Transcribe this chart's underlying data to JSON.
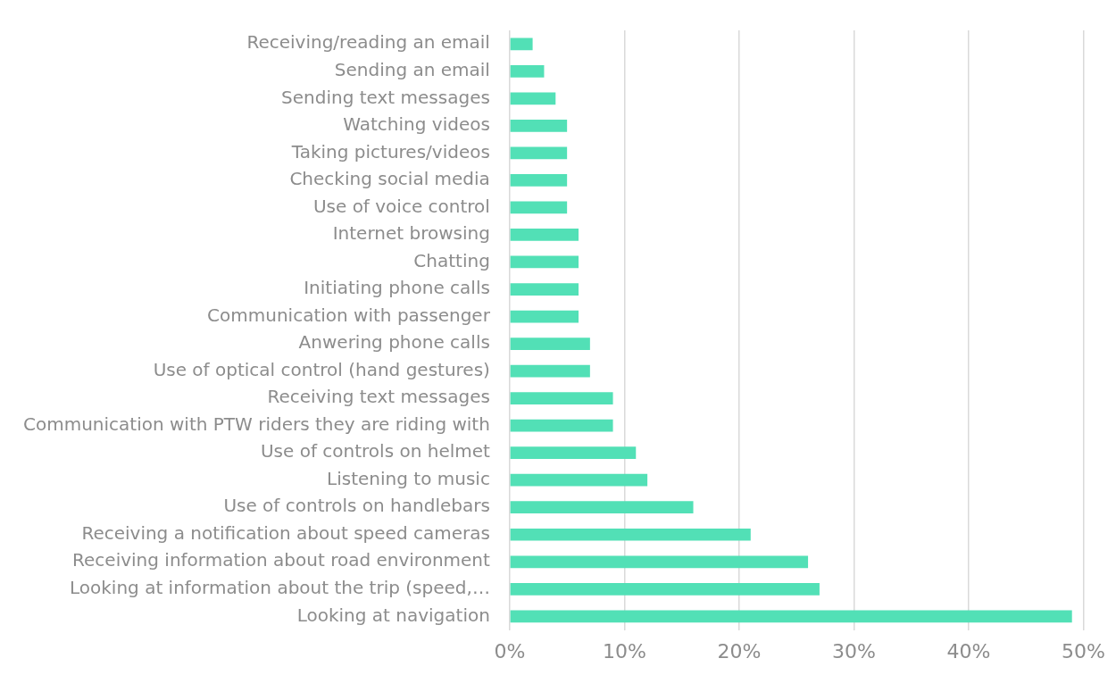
{
  "chart_data": {
    "type": "bar",
    "orientation": "horizontal",
    "categories": [
      "Receiving/reading an email",
      "Sending an email",
      "Sending text messages",
      "Watching videos",
      "Taking pictures/videos",
      "Checking social media",
      "Use of voice control",
      "Internet browsing",
      "Chatting",
      "Initiating phone calls",
      "Communication with passenger",
      "Anwering phone calls",
      "Use of optical control (hand gestures)",
      "Receiving text messages",
      "Communication with PTW riders they are riding with",
      "Use of controls on helmet",
      "Listening to music",
      "Use of controls on handlebars",
      "Receiving a notification about speed cameras",
      "Receiving information about road environment",
      "Looking at information about the trip (speed,…",
      "Looking at navigation"
    ],
    "values": [
      2,
      3,
      4,
      5,
      5,
      5,
      5,
      6,
      6,
      6,
      6,
      7,
      7,
      9,
      9,
      11,
      12,
      16,
      21,
      26,
      27,
      49
    ],
    "color": "#52e0b6",
    "xlim": [
      0,
      50
    ],
    "xticks": [
      {
        "value": 0,
        "label": "0%"
      },
      {
        "value": 10,
        "label": "10%"
      },
      {
        "value": 20,
        "label": "20%"
      },
      {
        "value": 30,
        "label": "30%"
      },
      {
        "value": 40,
        "label": "40%"
      },
      {
        "value": 50,
        "label": "50%"
      }
    ],
    "grid": "x"
  }
}
